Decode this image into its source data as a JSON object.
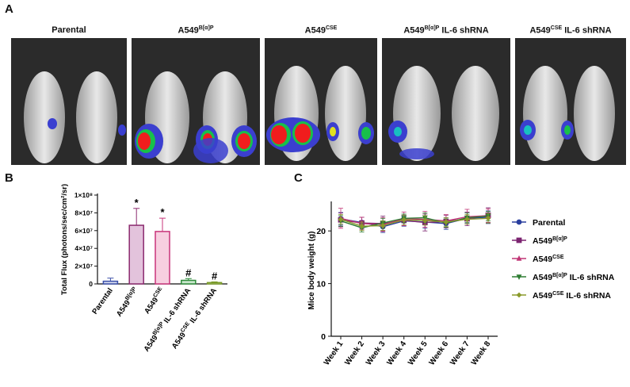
{
  "panels": {
    "a": "A",
    "b": "B",
    "c": "C"
  },
  "images": [
    {
      "base": "Parental",
      "sup": "",
      "suffix": ""
    },
    {
      "base": "A549",
      "sup": "B[α]P",
      "suffix": ""
    },
    {
      "base": "A549",
      "sup": "CSE",
      "suffix": ""
    },
    {
      "base": "A549",
      "sup": "B[α]P",
      "suffix": " IL-6 shRNA"
    },
    {
      "base": "A549",
      "sup": "CSE",
      "suffix": " IL-6 shRNA"
    }
  ],
  "colors": {
    "parental": "#3a4fa8",
    "bap": "#8b2a6e",
    "cse": "#c8347a",
    "bap_sh": "#2e8b3a",
    "cse_sh": "#7a9a2a"
  },
  "chart_data": [
    {
      "type": "bar",
      "ylabel": "Total Flux (photons/sec/cm²/sr)",
      "ylim": [
        0,
        100000000
      ],
      "yticks": [
        "0",
        "2×10⁷",
        "4×10⁷",
        "6×10⁷",
        "8×10⁷",
        "1×10⁸"
      ],
      "categories": [
        {
          "base": "Parental",
          "sup": "",
          "suffix": ""
        },
        {
          "base": "A549",
          "sup": "B[α]P",
          "suffix": ""
        },
        {
          "base": "A549",
          "sup": "CSE",
          "suffix": ""
        },
        {
          "base": "A549",
          "sup": "B[α]P",
          "suffix": " IL-6 shRNA"
        },
        {
          "base": "A549",
          "sup": "CSE",
          "suffix": " IL-6 shRNA"
        }
      ],
      "values": [
        3000000,
        66000000,
        59000000,
        4000000,
        1500000
      ],
      "errors": [
        3500000,
        19000000,
        15000000,
        2000000,
        800000
      ],
      "annotations": [
        "",
        "*",
        "*",
        "#",
        "#"
      ]
    },
    {
      "type": "line",
      "ylabel": "Mice body weight (g)",
      "ylim": [
        0,
        25
      ],
      "yticks": [
        "0",
        "10",
        "20"
      ],
      "x": [
        "Week 1",
        "Week 2",
        "Week 3",
        "Week 4",
        "Week 5",
        "Week 6",
        "Week 7",
        "Week 8"
      ],
      "series": [
        {
          "name": "Parental",
          "sup": "",
          "suffix": "",
          "marker": "circle",
          "color": "#2a3f9e",
          "values": [
            22.3,
            21.6,
            20.8,
            21.9,
            21.7,
            21.4,
            22.4,
            22.6
          ],
          "err": [
            1.2,
            1.0,
            1.1,
            1.0,
            1.2,
            1.1,
            1.0,
            1.2
          ]
        },
        {
          "name": "A549",
          "sup": "B[α]P",
          "suffix": "",
          "marker": "square",
          "color": "#7b2470",
          "values": [
            22.1,
            21.5,
            21.4,
            22.0,
            21.6,
            21.8,
            22.3,
            23.0
          ],
          "err": [
            1.3,
            1.1,
            1.4,
            1.0,
            1.6,
            1.2,
            1.3,
            1.4
          ]
        },
        {
          "name": "A549",
          "sup": "CSE",
          "suffix": "",
          "marker": "triangle-up",
          "color": "#c03575",
          "values": [
            22.4,
            21.4,
            21.2,
            22.3,
            22.2,
            21.9,
            22.7,
            22.9
          ],
          "err": [
            1.9,
            1.2,
            1.3,
            1.3,
            1.5,
            1.2,
            1.4,
            1.3
          ]
        },
        {
          "name": "A549",
          "sup": "B[α]P",
          "suffix": " IL-6 shRNA",
          "marker": "triangle-down",
          "color": "#2e7d32",
          "values": [
            21.9,
            20.6,
            21.5,
            22.4,
            22.5,
            21.5,
            22.5,
            22.8
          ],
          "err": [
            1.0,
            0.8,
            0.9,
            0.8,
            0.9,
            0.8,
            0.9,
            0.9
          ]
        },
        {
          "name": "A549",
          "sup": "CSE",
          "suffix": " IL-6 shRNA",
          "marker": "diamond",
          "color": "#8a9a2b",
          "values": [
            22.2,
            20.9,
            21.0,
            22.1,
            22.0,
            21.7,
            22.2,
            22.4
          ],
          "err": [
            0.9,
            0.8,
            0.9,
            0.9,
            0.9,
            0.8,
            0.9,
            0.9
          ]
        }
      ]
    }
  ]
}
